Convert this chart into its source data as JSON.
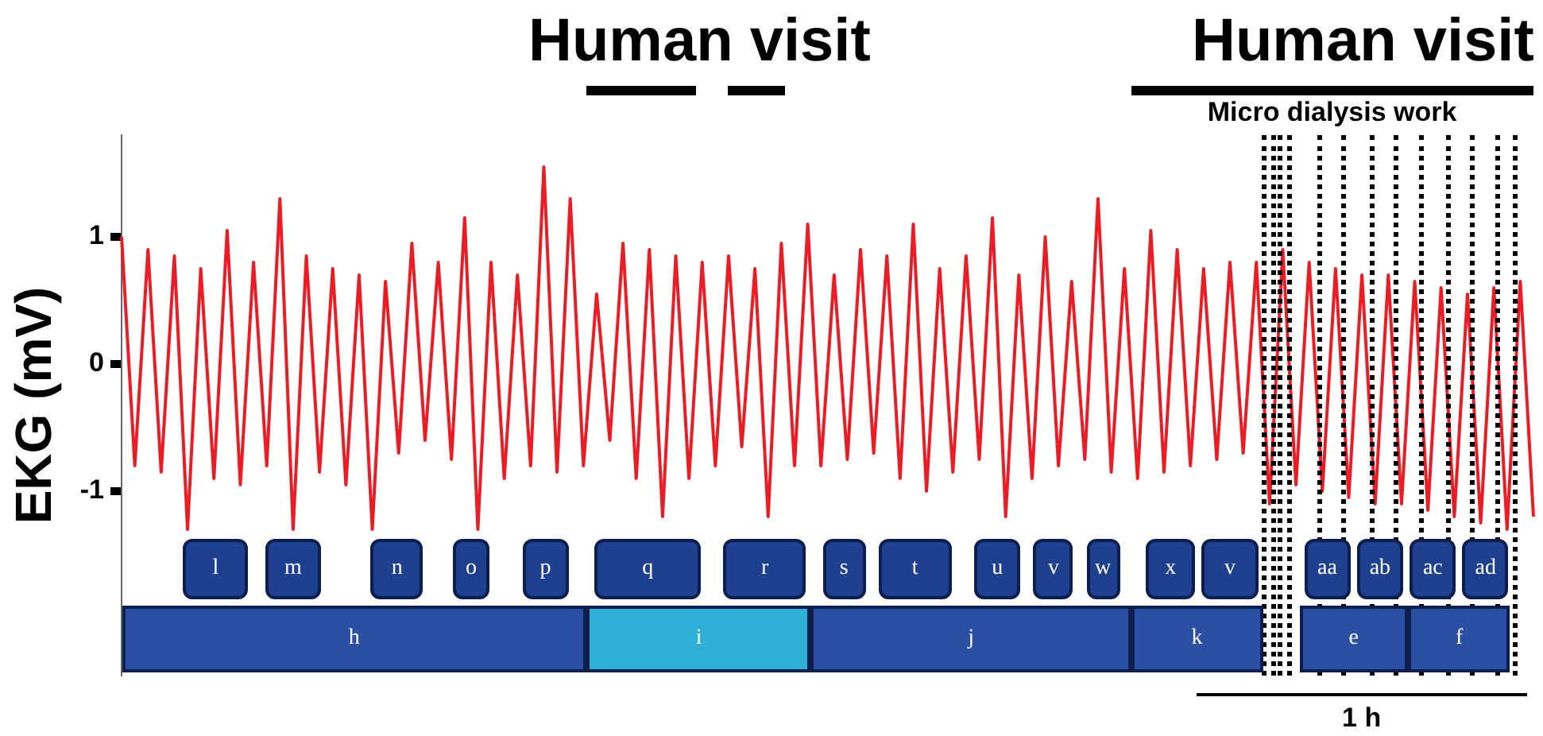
{
  "chart_data": {
    "type": "line",
    "ylabel": "EKG (mV)",
    "marker": "none",
    "tick_labels": "y",
    "annotations": [
      "Human visit",
      "Human visit",
      "Micro dialysis work",
      "1 h",
      "l",
      "m",
      "n",
      "o",
      "p",
      "q",
      "r",
      "s",
      "t",
      "u",
      "v",
      "w",
      "x",
      "v",
      "aa",
      "ab",
      "ac",
      "ad",
      "h",
      "i",
      "j",
      "k",
      "e",
      "f"
    ],
    "ylim": [
      -2.45,
      1.8
    ],
    "yticks": [
      -1,
      0,
      1
    ],
    "categories": [
      null,
      null,
      null,
      null,
      null,
      null,
      null,
      null,
      null,
      null,
      null,
      null,
      null,
      null,
      null,
      null,
      null,
      null,
      null,
      null,
      null,
      null,
      null,
      null,
      null,
      null,
      null,
      null,
      null,
      null,
      null,
      null,
      null,
      null,
      null,
      null,
      null,
      null,
      null,
      null,
      null,
      null,
      null,
      null,
      null,
      null,
      null,
      null,
      null,
      null,
      null,
      null,
      null,
      null,
      null,
      null,
      null,
      null,
      null,
      null,
      null,
      null,
      null,
      null,
      null,
      null,
      null,
      null,
      null,
      null,
      null,
      null,
      null,
      null,
      null,
      null,
      null,
      null,
      null,
      null,
      null,
      null,
      null,
      null,
      null,
      null,
      null,
      null,
      null,
      null,
      null,
      null,
      null,
      null,
      null,
      null,
      null,
      null,
      null,
      null,
      null,
      null,
      null,
      null,
      null,
      null,
      null,
      null
    ],
    "series": [
      {
        "color": "#ed1c24",
        "values": [
          1.0,
          -0.8,
          0.9,
          -0.85,
          0.85,
          -1.3,
          0.75,
          -0.9,
          1.05,
          -0.95,
          0.8,
          -0.8,
          1.3,
          -1.3,
          0.85,
          -0.85,
          0.75,
          -0.95,
          0.7,
          -1.3,
          0.65,
          -0.7,
          0.95,
          -0.6,
          0.8,
          -0.75,
          1.15,
          -1.3,
          0.8,
          -0.9,
          0.7,
          -0.8,
          1.55,
          -0.85,
          1.3,
          -0.8,
          0.55,
          -0.6,
          0.95,
          -0.9,
          0.9,
          -1.2,
          0.85,
          -0.9,
          0.8,
          -0.8,
          0.85,
          -0.65,
          0.75,
          -1.2,
          0.95,
          -0.8,
          1.1,
          -0.8,
          0.7,
          -0.75,
          0.9,
          -0.7,
          0.85,
          -0.9,
          1.1,
          -1.0,
          0.75,
          -0.85,
          0.85,
          -0.75,
          1.15,
          -1.2,
          0.7,
          -0.9,
          1.0,
          -0.8,
          0.65,
          -0.75,
          1.3,
          -0.85,
          0.75,
          -0.9,
          1.05,
          -0.85,
          0.9,
          -0.8,
          0.75,
          -0.75,
          0.8,
          -0.7,
          0.8,
          -1.1,
          0.9,
          -0.95,
          0.8,
          -1.0,
          0.75,
          -1.05,
          0.7,
          -1.1,
          0.7,
          -1.1,
          0.65,
          -1.15,
          0.6,
          -1.2,
          0.55,
          -1.25,
          0.6,
          -1.3,
          0.65,
          -1.2
        ]
      }
    ]
  }
}
